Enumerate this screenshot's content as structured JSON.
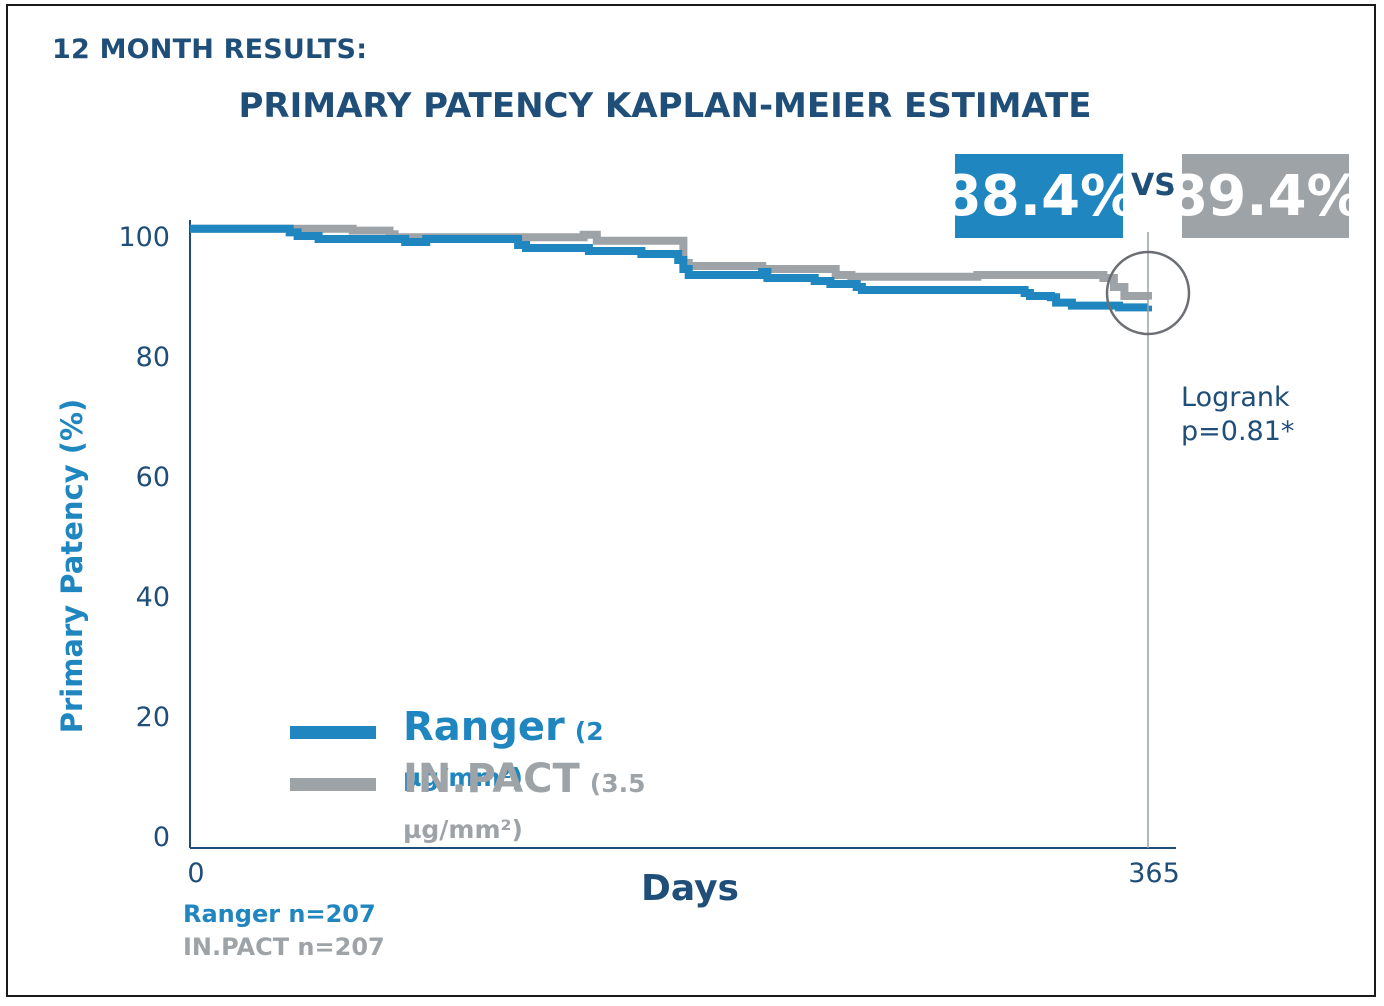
{
  "header": {
    "kicker": "12 MONTH RESULTS:",
    "title": "PRIMARY PATENCY KAPLAN-MEIER ESTIMATE"
  },
  "comparison": {
    "ranger_value": "88.4%",
    "vs": "VS",
    "inpact_value": "89.4%"
  },
  "logrank": {
    "line1": "Logrank",
    "line2": "p=0.81*"
  },
  "sample_sizes": {
    "ranger": "Ranger n=207",
    "inpact": "IN.PACT n=207"
  },
  "legend": [
    {
      "name": "Ranger",
      "dose": "(2 µg/mm²)"
    },
    {
      "name": "IN.PACT",
      "dose": "(3.5 µg/mm²)"
    }
  ],
  "colors": {
    "ranger": "#1f86c0",
    "inpact": "#9ea3a8",
    "text": "#1f4e79"
  },
  "chart_data": {
    "type": "line",
    "title": "PRIMARY PATENCY KAPLAN-MEIER ESTIMATE",
    "xlabel": "Days",
    "ylabel": "Primary Patency (%)",
    "xlim": [
      0,
      365
    ],
    "ylim": [
      0,
      100
    ],
    "x_ticks": [
      "0",
      "365"
    ],
    "y_ticks": [
      "0",
      "20",
      "40",
      "60",
      "80",
      "100"
    ],
    "step": true,
    "series": [
      {
        "name": "Ranger",
        "x": [
          0,
          38,
          41,
          49,
          82,
          90,
          125,
          128,
          152,
          172,
          186,
          188,
          190,
          218,
          220,
          238,
          240,
          244,
          254,
          256,
          318,
          320,
          328,
          330,
          334,
          336,
          350,
          354,
          365
        ],
        "y": [
          101.2,
          100.6,
          100.0,
          99.5,
          99.0,
          99.5,
          98.5,
          98.0,
          97.5,
          97.0,
          96.0,
          94.5,
          93.5,
          94.0,
          93.0,
          92.5,
          92.5,
          92.0,
          91.5,
          91.0,
          90.5,
          90.0,
          89.8,
          88.9,
          88.9,
          88.4,
          88.4,
          88.1,
          88.4
        ]
      },
      {
        "name": "IN.PACT",
        "x": [
          0,
          38,
          50,
          62,
          76,
          78,
          115,
          150,
          155,
          188,
          190,
          203,
          218,
          246,
          252,
          300,
          348,
          352,
          356,
          365
        ],
        "y": [
          101.2,
          101.2,
          101.2,
          100.9,
          100.3,
          99.8,
          99.8,
          100.2,
          99.2,
          95.5,
          95.0,
          95.0,
          94.5,
          93.5,
          93.2,
          93.5,
          93.0,
          91.5,
          90.0,
          89.4
        ]
      }
    ],
    "annotation": {
      "x": 365,
      "label": "Logrank p=0.81*"
    }
  }
}
